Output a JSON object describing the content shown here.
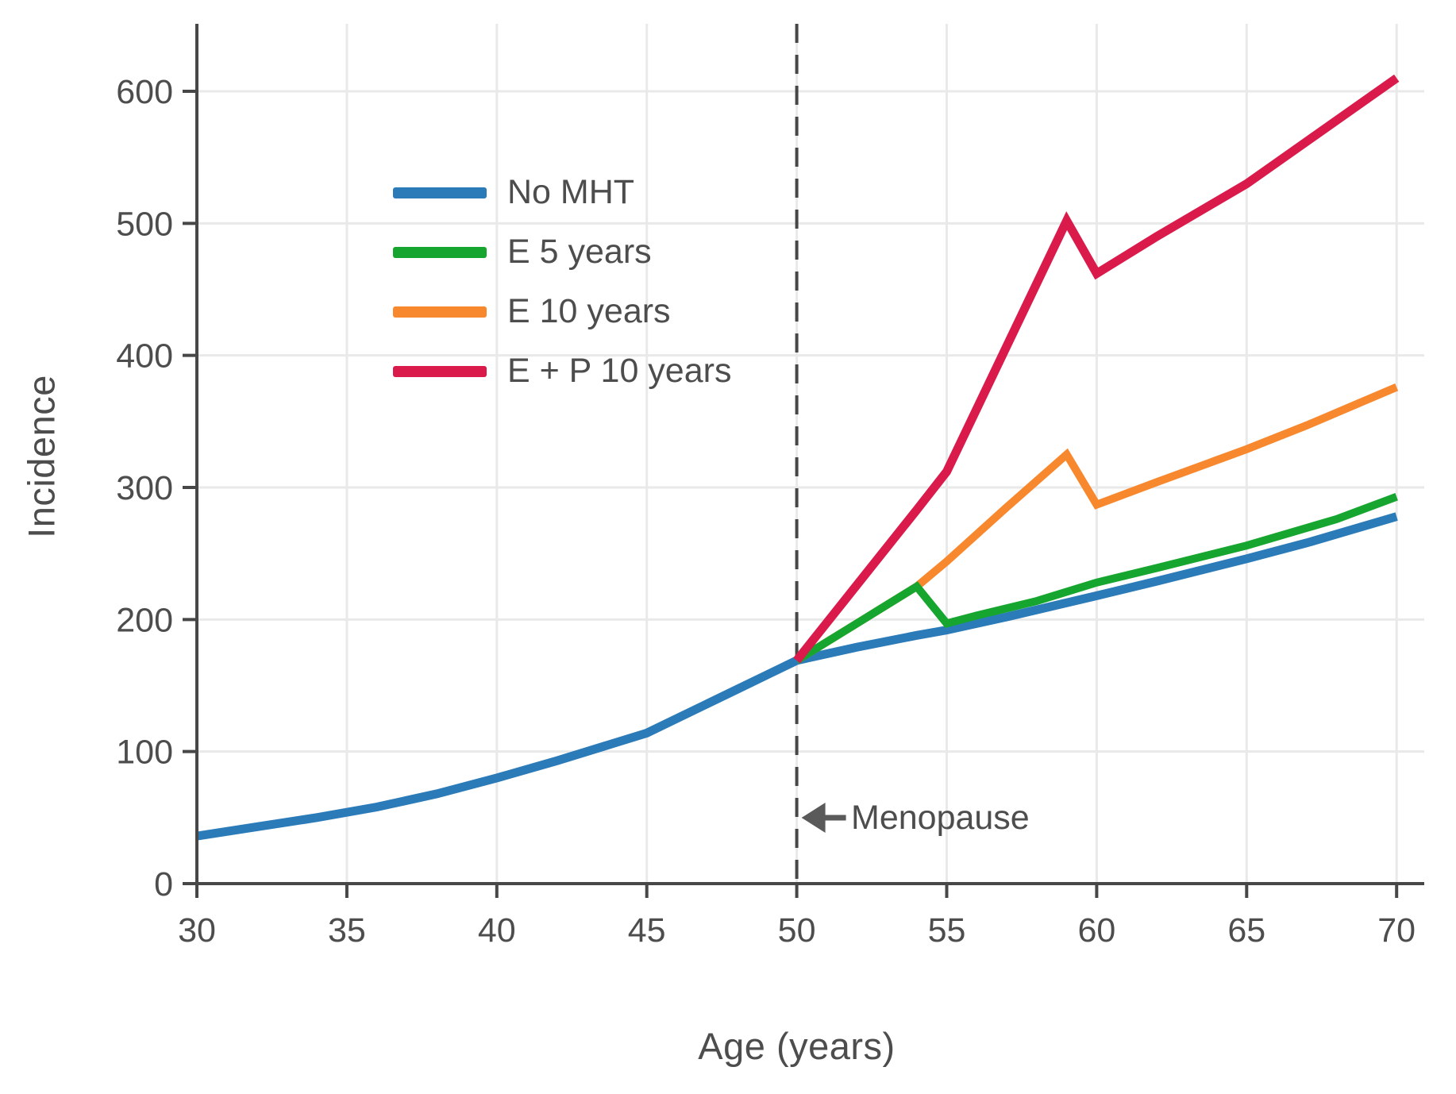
{
  "chart_data": {
    "type": "line",
    "title": "",
    "xlabel": "Age (years)",
    "ylabel": "Incidence",
    "xlim": [
      30,
      70
    ],
    "ylim": [
      0,
      650
    ],
    "xticks": [
      "30",
      "35",
      "40",
      "45",
      "50",
      "55",
      "60",
      "65",
      "70"
    ],
    "xtick_values": [
      30,
      35,
      40,
      45,
      50,
      55,
      60,
      65,
      70
    ],
    "yticks": [
      "0",
      "100",
      "200",
      "300",
      "400",
      "500",
      "600"
    ],
    "ytick_values": [
      0,
      100,
      200,
      300,
      400,
      500,
      600
    ],
    "grid": true,
    "legend_position": "upper left inside plot",
    "colors": {
      "axis": "#474747",
      "grid": "#e9e9e9",
      "text": "#4d4d4d",
      "dashed_line": "#474747",
      "arrow": "#5a5a5a"
    },
    "menopause_line": {
      "x": 50,
      "style": "dashed vertical"
    },
    "annotation": {
      "text": "Menopause",
      "arrow": "left-arrow",
      "x": 50.2,
      "y": 50
    },
    "series": [
      {
        "name": "No MHT",
        "color": "#2b7bb9",
        "width": 11,
        "points": [
          [
            30,
            36
          ],
          [
            32,
            43
          ],
          [
            34,
            50
          ],
          [
            36,
            58
          ],
          [
            38,
            68
          ],
          [
            40,
            80
          ],
          [
            42,
            93
          ],
          [
            44,
            107
          ],
          [
            45,
            114
          ],
          [
            46,
            125
          ],
          [
            47,
            136
          ],
          [
            48,
            147
          ],
          [
            49,
            158
          ],
          [
            50,
            169
          ],
          [
            52,
            179
          ],
          [
            54,
            188
          ],
          [
            55,
            192
          ],
          [
            57,
            202
          ],
          [
            60,
            218
          ],
          [
            62,
            229
          ],
          [
            65,
            246
          ],
          [
            67,
            258
          ],
          [
            70,
            278
          ]
        ]
      },
      {
        "name": "E 5 years",
        "color": "#16a62f",
        "width": 10,
        "points": [
          [
            50,
            169
          ],
          [
            52,
            197
          ],
          [
            54,
            225
          ],
          [
            55,
            197
          ],
          [
            56,
            203
          ],
          [
            58,
            214
          ],
          [
            60,
            228
          ],
          [
            62,
            239
          ],
          [
            65,
            256
          ],
          [
            68,
            276
          ],
          [
            70,
            293
          ]
        ]
      },
      {
        "name": "E 10 years",
        "color": "#f8882e",
        "width": 10,
        "points": [
          [
            50,
            169
          ],
          [
            52,
            197
          ],
          [
            54,
            225
          ],
          [
            55,
            244
          ],
          [
            57,
            285
          ],
          [
            59,
            325
          ],
          [
            60,
            287
          ],
          [
            62,
            304
          ],
          [
            65,
            329
          ],
          [
            67,
            347
          ],
          [
            70,
            376
          ]
        ]
      },
      {
        "name": "E + P 10 years",
        "color": "#d91a4a",
        "width": 11,
        "points": [
          [
            50,
            169
          ],
          [
            52,
            226
          ],
          [
            54,
            283
          ],
          [
            55,
            312
          ],
          [
            57,
            407
          ],
          [
            59,
            502
          ],
          [
            60,
            462
          ],
          [
            62,
            490
          ],
          [
            65,
            530
          ],
          [
            67,
            562
          ],
          [
            70,
            610
          ]
        ]
      }
    ]
  }
}
